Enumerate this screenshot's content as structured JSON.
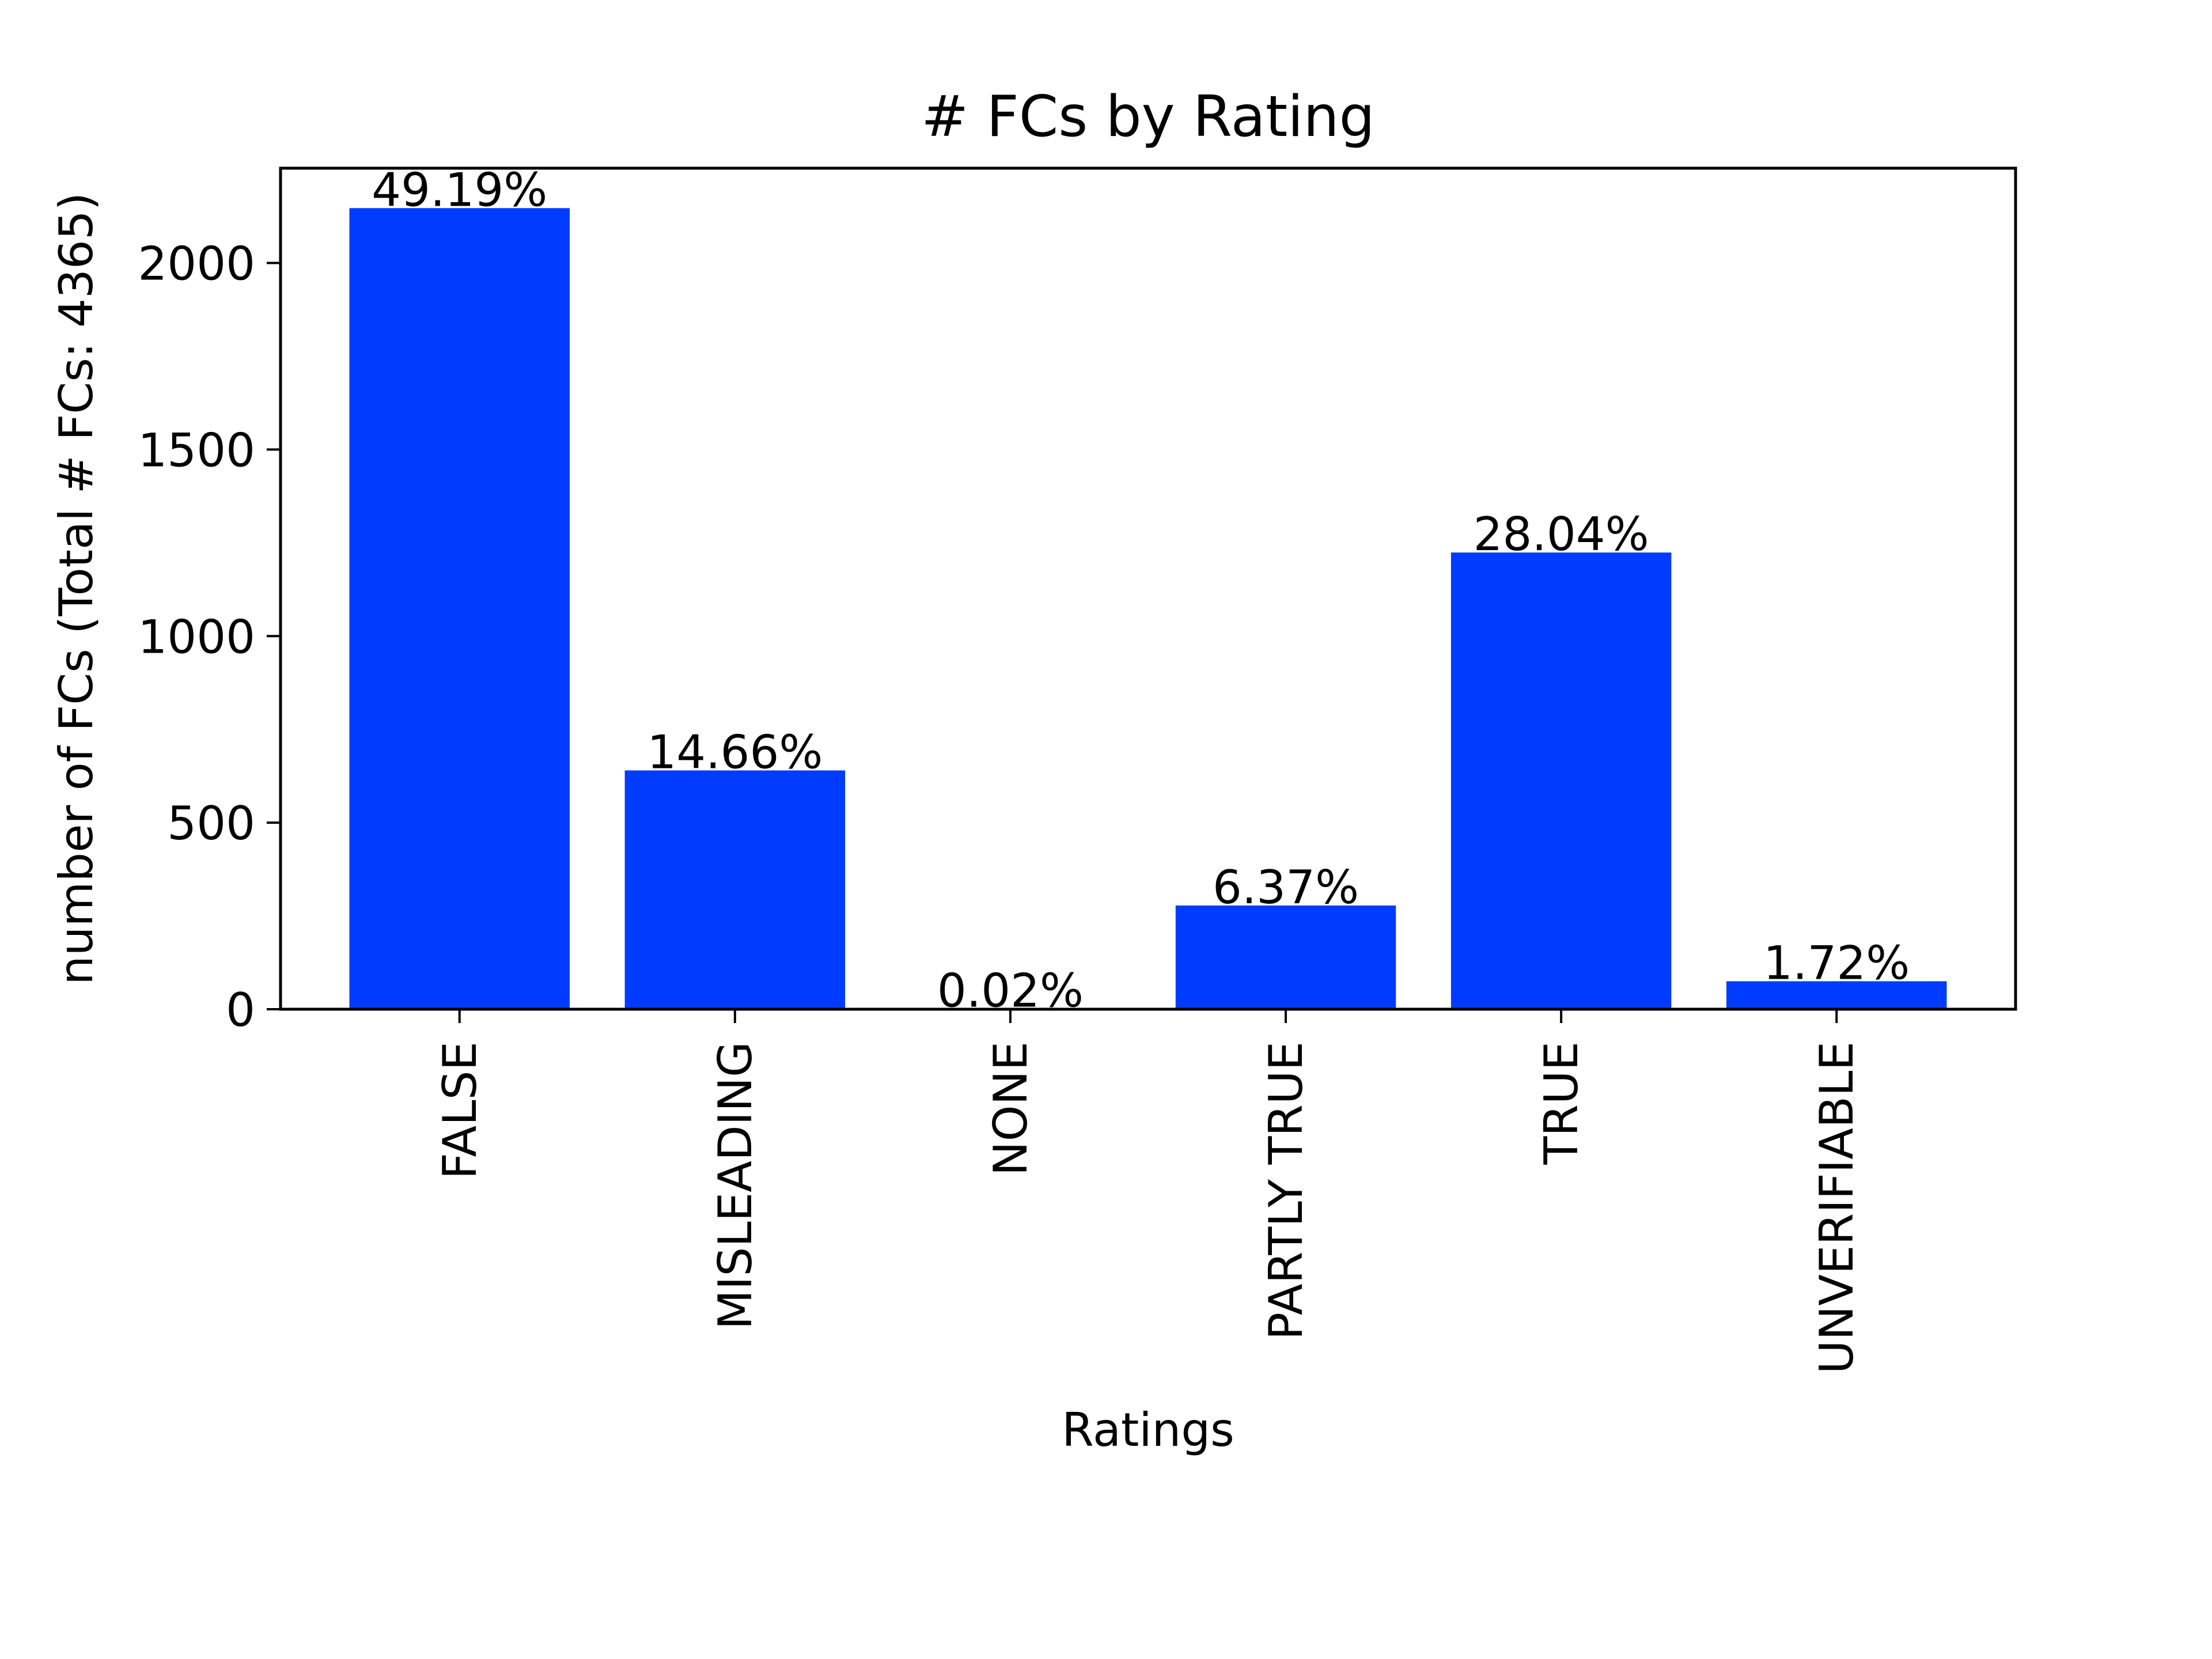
{
  "chart_data": {
    "type": "bar",
    "title": "# FCs by Rating",
    "xlabel": "Ratings",
    "ylabel": "number of FCs (Total # FCs: 4365)",
    "categories": [
      "FALSE",
      "MISLEADING",
      "NONE",
      "PARTLY TRUE",
      "TRUE",
      "UNVERIFIABLE"
    ],
    "values": [
      2147,
      640,
      1,
      278,
      1224,
      75
    ],
    "data_labels": [
      "49.19%",
      "14.66%",
      "0.02%",
      "6.37%",
      "28.04%",
      "1.72%"
    ],
    "ylim": [
      0,
      2254
    ],
    "yticks": [
      0,
      500,
      1000,
      1500,
      2000
    ],
    "bar_color": "#003cff",
    "grid": false,
    "legend": "none"
  }
}
